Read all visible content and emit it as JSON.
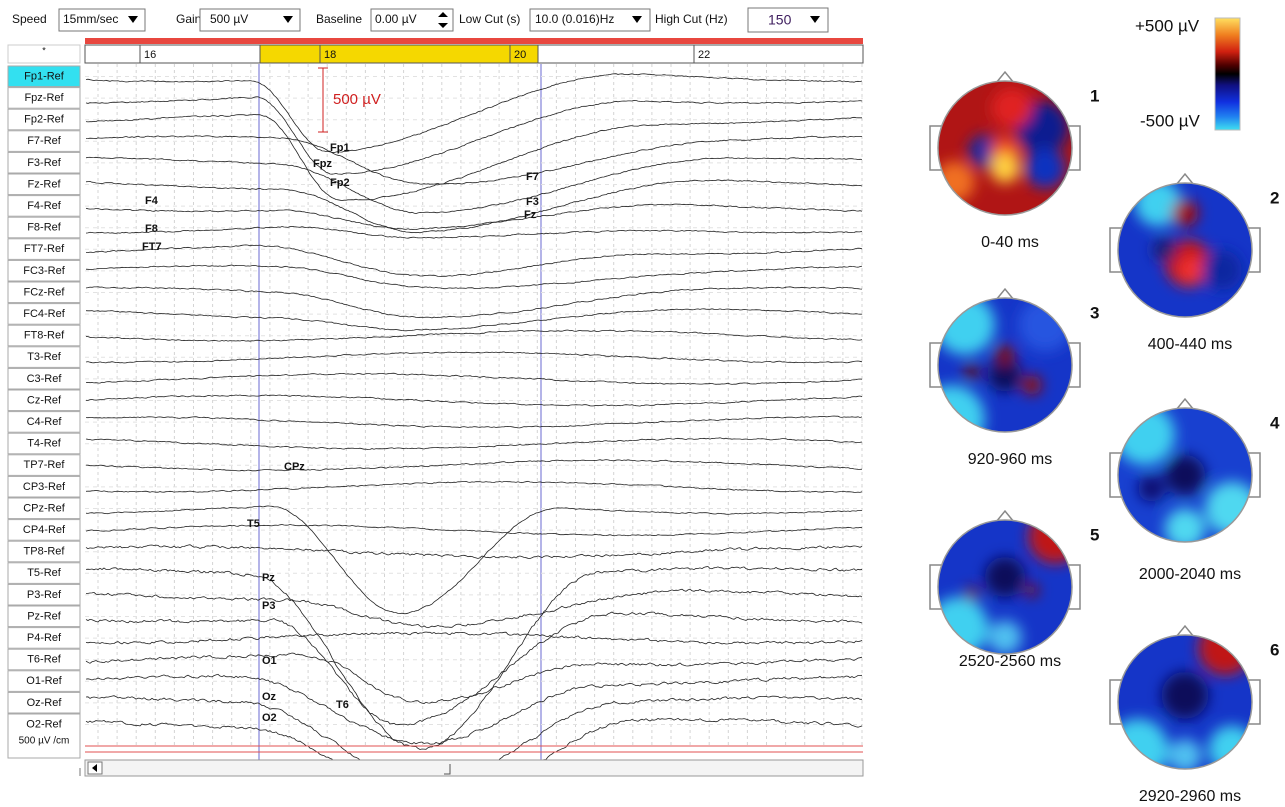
{
  "toolbar": {
    "speed_label": "Speed",
    "speed": "15mm/sec",
    "gain_label": "Gain",
    "gain": "500 µV",
    "baseline_label": "Baseline",
    "baseline": "0.00 µV",
    "low_cut_label": "Low Cut (s)",
    "low_cut": "10.0 (0.016)Hz",
    "high_cut_label": "High Cut (Hz)",
    "high_cut": "150"
  },
  "channels": [
    "Fp1-Ref",
    "Fpz-Ref",
    "Fp2-Ref",
    "F7-Ref",
    "F3-Ref",
    "Fz-Ref",
    "F4-Ref",
    "F8-Ref",
    "FT7-Ref",
    "FC3-Ref",
    "FCz-Ref",
    "FC4-Ref",
    "FT8-Ref",
    "T3-Ref",
    "C3-Ref",
    "Cz-Ref",
    "C4-Ref",
    "T4-Ref",
    "TP7-Ref",
    "CP3-Ref",
    "CPz-Ref",
    "CP4-Ref",
    "TP8-Ref",
    "T5-Ref",
    "P3-Ref",
    "Pz-Ref",
    "P4-Ref",
    "T6-Ref",
    "O1-Ref",
    "Oz-Ref",
    "O2-Ref"
  ],
  "channel_scale": "500 µV /cm",
  "timeline": {
    "marker": "*",
    "ticks": [
      16,
      18,
      20,
      22
    ]
  },
  "scale_bar": "500 µV",
  "trace_labels": [
    "Fp1",
    "Fpz",
    "Fp2",
    "F7",
    "F3",
    "Fz",
    "F4",
    "F8",
    "FT7",
    "CPz",
    "T5",
    "Pz",
    "P3",
    "O1",
    "Oz",
    "O2",
    "T6"
  ],
  "color_scale": {
    "max": "+500 µV",
    "min": "-500 µV"
  },
  "maps": [
    {
      "number": "1",
      "time": "0-40 ms"
    },
    {
      "number": "2",
      "time": "400-440 ms"
    },
    {
      "number": "3",
      "time": "920-960 ms"
    },
    {
      "number": "4",
      "time": "2000-2040 ms"
    },
    {
      "number": "5",
      "time": "2520-2560 ms"
    },
    {
      "number": "6",
      "time": "2920-2960 ms"
    }
  ]
}
